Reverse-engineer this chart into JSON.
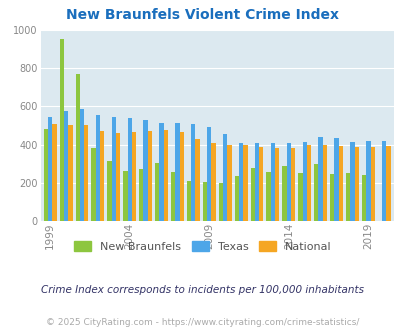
{
  "title": "New Braunfels Violent Crime Index",
  "years": [
    1999,
    2000,
    2001,
    2002,
    2003,
    2004,
    2005,
    2006,
    2007,
    2008,
    2009,
    2010,
    2011,
    2012,
    2013,
    2014,
    2015,
    2016,
    2017,
    2018,
    2019,
    2020
  ],
  "new_braunfels": [
    480,
    950,
    770,
    380,
    315,
    260,
    270,
    305,
    255,
    210,
    205,
    200,
    235,
    280,
    255,
    290,
    250,
    300,
    245,
    250,
    240,
    0
  ],
  "texas": [
    545,
    575,
    585,
    555,
    545,
    540,
    530,
    510,
    510,
    505,
    490,
    455,
    410,
    410,
    410,
    410,
    415,
    440,
    435,
    415,
    420,
    420
  ],
  "national": [
    505,
    500,
    500,
    470,
    460,
    465,
    470,
    475,
    465,
    430,
    410,
    400,
    400,
    385,
    380,
    380,
    395,
    400,
    390,
    385,
    385,
    390
  ],
  "bar_colors": {
    "new_braunfels": "#8dc63f",
    "texas": "#4da6e8",
    "national": "#f5a623"
  },
  "bg_color": "#dce9f0",
  "ylim": [
    0,
    1000
  ],
  "yticks": [
    0,
    200,
    400,
    600,
    800,
    1000
  ],
  "xlabel_years": [
    1999,
    2004,
    2009,
    2014,
    2019
  ],
  "legend_labels": [
    "New Braunfels",
    "Texas",
    "National"
  ],
  "footnote": "Crime Index corresponds to incidents per 100,000 inhabitants",
  "copyright": "© 2025 CityRating.com - https://www.cityrating.com/crime-statistics/",
  "title_color": "#1a6ebd",
  "tick_color": "#888888",
  "footnote_color": "#333366",
  "copyright_color": "#aaaaaa",
  "legend_text_color": "#555555"
}
